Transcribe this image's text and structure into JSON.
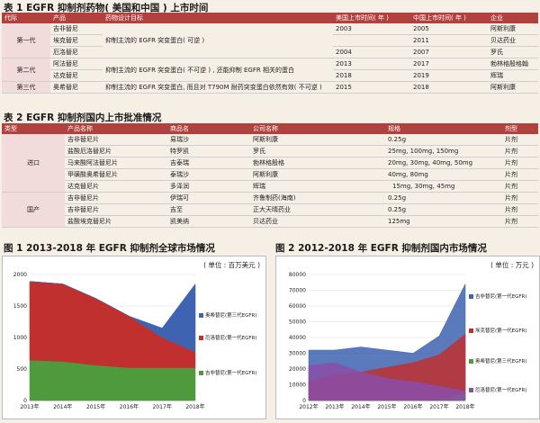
{
  "table1": {
    "title": "表 1  EGFR 抑制剂药物( 美国和中国 ) 上市时间",
    "headers": [
      "代际",
      "产品",
      "药物设计目标",
      "美国上市时间( 年 )",
      "中国上市时间( 年 )",
      "企业"
    ],
    "rows": [
      {
        "gen": "第一代",
        "product": "吉非替尼",
        "goal": "抑制主流的 EGFR 突变蛋白( 可逆 )",
        "us": "2003",
        "cn": "2005",
        "company": "阿斯利康"
      },
      {
        "gen": "",
        "product": "埃克替尼",
        "goal": "",
        "us": "",
        "cn": "2011",
        "company": "贝达药业"
      },
      {
        "gen": "",
        "product": "厄洛替尼",
        "goal": "",
        "us": "2004",
        "cn": "2007",
        "company": "罗氏"
      },
      {
        "gen": "第二代",
        "product": "阿法替尼",
        "goal": "抑制主流的 EGFR 突变蛋白( 不可逆 ) , 还能抑制 EGFR 相关的蛋白",
        "us": "2013",
        "cn": "2017",
        "company": "勃林格殷格翰"
      },
      {
        "gen": "",
        "product": "达克替尼",
        "goal": "",
        "us": "2018",
        "cn": "2019",
        "company": "辉瑞"
      },
      {
        "gen": "第三代",
        "product": "奥希替尼",
        "goal": "抑制主流的 EGFR 突变蛋白, 而且对 T790M 耐药突变蛋白依然有效( 不可逆 )",
        "us": "2015",
        "cn": "2018",
        "company": "阿斯利康"
      }
    ]
  },
  "table2": {
    "title": "表 2  EGFR 抑制剂国内上市批准情况",
    "headers": [
      "类型",
      "产品名称",
      "商品名",
      "公司名称",
      "规格",
      "剂型"
    ],
    "rows": [
      {
        "type": "",
        "product": "吉非替尼片",
        "brand": "易瑞沙",
        "company": "阿斯利康",
        "spec": "0.25g",
        "form": "片剂"
      },
      {
        "type": "",
        "product": "盐酸厄洛替尼片",
        "brand": "特罗凯",
        "company": "罗氏",
        "spec": "25mg, 100mg, 150mg",
        "form": "片剂"
      },
      {
        "type": "进口",
        "product": "马来酸阿法替尼片",
        "brand": "吉泰瑞",
        "company": "勃林格殷格",
        "spec": "20mg, 30mg, 40mg, 50mg",
        "form": "片剂"
      },
      {
        "type": "",
        "product": "甲磺酸奥希替尼片",
        "brand": "泰瑞沙",
        "company": "阿斯利康",
        "spec": "40mg, 80mg",
        "form": "片剂"
      },
      {
        "type": "",
        "product": "达克替尼片",
        "brand": "多泽润",
        "company": "辉瑞",
        "spec": "15mg, 30mg, 45mg",
        "form": "片剂"
      },
      {
        "type": "",
        "product": "吉非替尼片",
        "brand": "伊瑞可",
        "company": "齐鲁制药(海南)",
        "spec": "0.25g",
        "form": "片剂"
      },
      {
        "type": "国产",
        "product": "吉非替尼片",
        "brand": "吉至",
        "company": "正大天晴药业",
        "spec": "0.25g",
        "form": "片剂"
      },
      {
        "type": "",
        "product": "盐酸埃克替尼片",
        "brand": "凯美纳",
        "company": "贝达药业",
        "spec": "125mg",
        "form": "片剂"
      }
    ]
  },
  "figure1_title": "图 1  2013-2018 年 EGFR 抑制剂全球市场情况",
  "figure2_title": "图 2    2012-2018 年 EGFR 抑制剂国内市场情况",
  "chart_data": [
    {
      "type": "area",
      "unit": "( 单位 : 百万美元 )",
      "x": [
        "2013年",
        "2014年",
        "2015年",
        "2016年",
        "2017年",
        "2018年"
      ],
      "ylim": [
        0,
        2000
      ],
      "yticks": [
        0,
        500,
        1000,
        1500,
        2000
      ],
      "stacked": true,
      "series": [
        {
          "name": "吉非替尼(第一代EGFR)",
          "color": "#4f9a3c",
          "values": [
            640,
            620,
            560,
            520,
            520,
            520
          ]
        },
        {
          "name": "厄洛替尼(第一代EGFR)",
          "color": "#c0302f",
          "values": [
            1250,
            1230,
            1060,
            820,
            480,
            250
          ]
        },
        {
          "name": "奥希替尼(第三代EGFR)",
          "color": "#3e63b0",
          "values": [
            0,
            0,
            0,
            0,
            150,
            1080
          ]
        }
      ]
    },
    {
      "type": "area",
      "unit": "( 单位 : 万元 )",
      "x": [
        "2012年",
        "2013年",
        "2014年",
        "2015年",
        "2016年",
        "2017年",
        "2018年"
      ],
      "ylim": [
        0,
        80000
      ],
      "yticks": [
        0,
        10000,
        20000,
        30000,
        40000,
        50000,
        60000,
        70000,
        80000
      ],
      "stacked": false,
      "series": [
        {
          "name": "吉非替尼(第一代EGFR)",
          "color": "#3e63b0",
          "values": [
            32000,
            32000,
            34000,
            32000,
            30000,
            41000,
            74000
          ]
        },
        {
          "name": "埃克替尼(第一代EGFR)",
          "color": "#c0302f",
          "values": [
            12000,
            16000,
            18000,
            21000,
            24000,
            29000,
            42000
          ]
        },
        {
          "name": "奥希替尼(第三代EGFR)",
          "color": "#4f9a3c",
          "values": [
            0,
            0,
            0,
            0,
            0,
            0,
            5000
          ]
        },
        {
          "name": "厄洛替尼(第一代EGFR)",
          "color": "#8a4ea8",
          "values": [
            22000,
            24000,
            18000,
            14000,
            12000,
            9000,
            6000
          ]
        }
      ]
    }
  ]
}
